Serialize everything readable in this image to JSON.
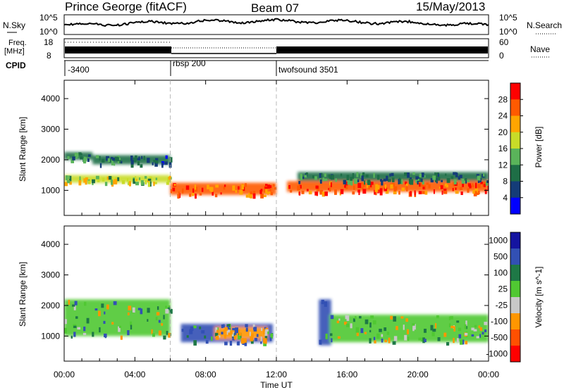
{
  "header": {
    "station": "Prince George (fitACF)",
    "beam": "Beam 07",
    "date": "15/May/2013"
  },
  "noise_panel": {
    "left_label": "N.Sky",
    "right_label": "N.Search",
    "left_ticks": [
      "10^5",
      "10^0"
    ],
    "right_ticks": [
      "10^5",
      "10^0"
    ]
  },
  "freq_panel": {
    "left_label_line1": "Freq.",
    "left_label_line2": "[MHz]",
    "left_ticks": [
      "18",
      "8"
    ],
    "right_ticks": [
      "60",
      "0"
    ],
    "right_label": "Nave"
  },
  "cpid_panel": {
    "label": "CPID",
    "segments": [
      {
        "start_hour": 0,
        "label": "-3400"
      },
      {
        "start_hour": 6,
        "label": "rbsp 200"
      },
      {
        "start_hour": 12,
        "label": "twofsound 3501"
      }
    ]
  },
  "power_colorbar": {
    "label": "Power [dB]",
    "ticks": [
      "28",
      "24",
      "20",
      "16",
      "12",
      "8",
      "4"
    ],
    "colors": [
      "#ff0000",
      "#ff5a00",
      "#ffa500",
      "#c8dc28",
      "#5ab45a",
      "#1e6e46",
      "#143c78",
      "#0000ff"
    ]
  },
  "velocity_colorbar": {
    "label": "Velocity [m s^-1]",
    "ticks": [
      "1000",
      "500",
      "100",
      "25",
      "-25",
      "-100",
      "-500",
      "-1000"
    ],
    "colors": [
      "#1414a0",
      "#3250b4",
      "#1e7846",
      "#50c832",
      "#c8c8c8",
      "#ff9600",
      "#ff5000",
      "#ff0000"
    ]
  },
  "chart_data": {
    "type": "heatmap",
    "title": "Prince George (fitACF)",
    "subtitle": "Beam 07",
    "xlabel": "Time UT",
    "ylabel": "Slant Range [km]",
    "x_ticks": [
      "00:00",
      "04:00",
      "08:00",
      "12:00",
      "16:00",
      "20:00",
      "00:00"
    ],
    "xlim_hours": [
      0,
      24
    ],
    "ylim_km": [
      180,
      4600
    ],
    "y_ticks": [
      1000,
      2000,
      3000,
      4000
    ],
    "panels": [
      {
        "name": "Power",
        "unit": "dB",
        "scale": [
          0,
          32
        ],
        "echo_regions": [
          {
            "t_start": 0.0,
            "t_end": 1.6,
            "r_low": 2000,
            "r_high": 2250,
            "value": 10
          },
          {
            "t_start": 1.6,
            "t_end": 6.0,
            "r_low": 1850,
            "r_high": 2150,
            "value": 9
          },
          {
            "t_start": 0.0,
            "t_end": 6.0,
            "r_low": 1250,
            "r_high": 1500,
            "value": 17
          },
          {
            "t_start": 6.0,
            "t_end": 12.0,
            "r_low": 850,
            "r_high": 1250,
            "value": 26
          },
          {
            "t_start": 12.6,
            "t_end": 24.0,
            "r_low": 950,
            "r_high": 1300,
            "value": 26
          },
          {
            "t_start": 13.2,
            "t_end": 24.0,
            "r_low": 1300,
            "r_high": 1600,
            "value": 10
          }
        ]
      },
      {
        "name": "Velocity",
        "unit": "m s^-1",
        "scale": [
          -1000,
          1000
        ],
        "echo_regions": [
          {
            "t_start": 0.0,
            "t_end": 6.0,
            "r_low": 1000,
            "r_high": 2200,
            "value": 0
          },
          {
            "t_start": 6.6,
            "t_end": 11.8,
            "r_low": 800,
            "r_high": 1400,
            "value": 120
          },
          {
            "t_start": 8.5,
            "t_end": 11.5,
            "r_low": 900,
            "r_high": 1300,
            "value": -200
          },
          {
            "t_start": 14.4,
            "t_end": 15.1,
            "r_low": 700,
            "r_high": 2200,
            "value": 150
          },
          {
            "t_start": 15.0,
            "t_end": 24.0,
            "r_low": 800,
            "r_high": 1700,
            "value": 0
          }
        ]
      }
    ],
    "cpid_changes_hours": [
      6,
      12
    ]
  }
}
